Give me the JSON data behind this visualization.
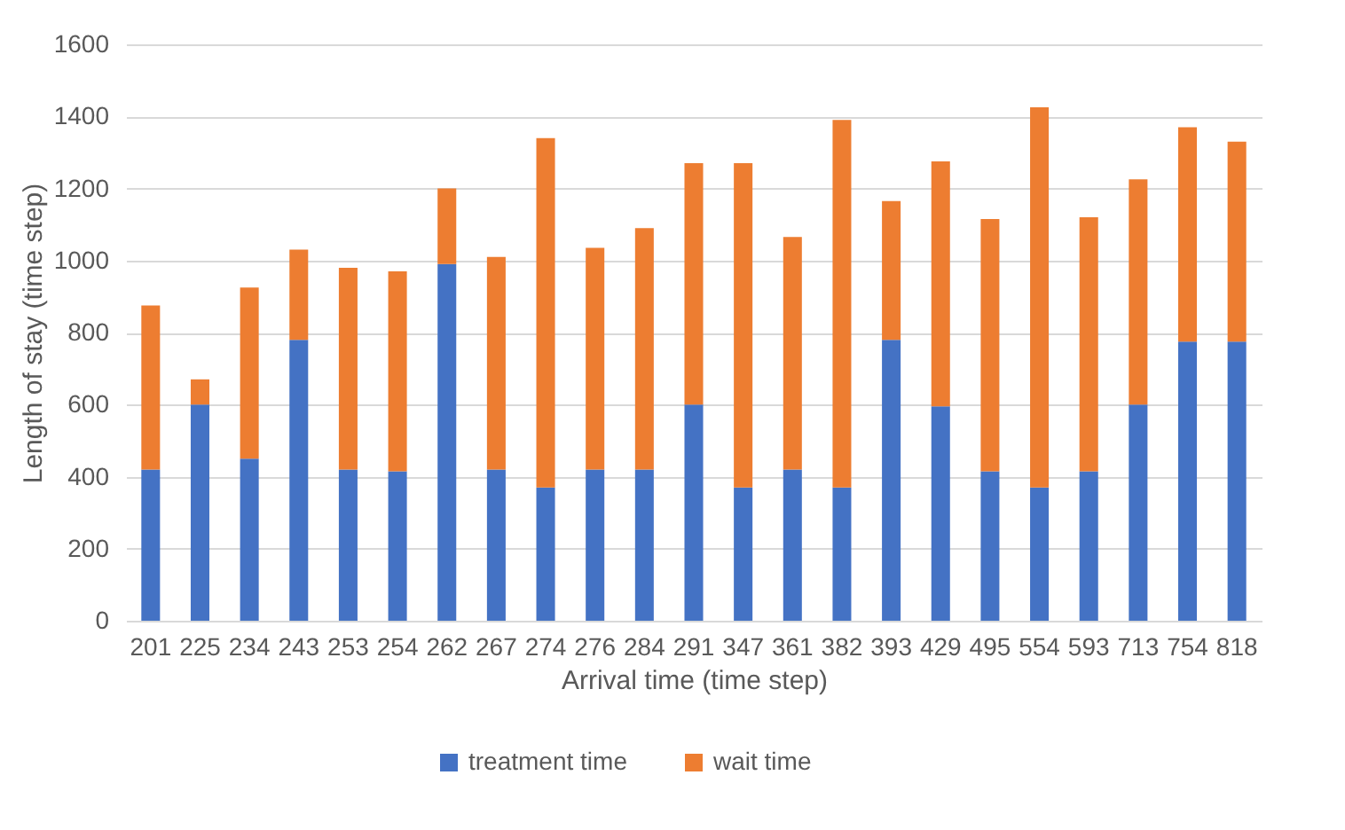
{
  "chart_data": {
    "type": "bar",
    "stacked": true,
    "xlabel": "Arrival time (time step)",
    "ylabel": "Length of stay (time step)",
    "categories": [
      "201",
      "225",
      "234",
      "243",
      "253",
      "254",
      "262",
      "267",
      "274",
      "276",
      "284",
      "291",
      "347",
      "361",
      "382",
      "393",
      "429",
      "495",
      "554",
      "593",
      "713",
      "754",
      "818"
    ],
    "series": [
      {
        "name": "treatment time",
        "color": "#4472c4",
        "values": [
          420,
          600,
          450,
          780,
          420,
          415,
          990,
          420,
          370,
          420,
          420,
          600,
          370,
          420,
          370,
          780,
          595,
          415,
          370,
          415,
          600,
          775,
          775
        ]
      },
      {
        "name": "wait time",
        "color": "#ed7d31",
        "values": [
          455,
          70,
          475,
          250,
          560,
          555,
          210,
          590,
          970,
          615,
          670,
          670,
          900,
          645,
          1020,
          385,
          680,
          700,
          1055,
          705,
          625,
          595,
          555
        ]
      }
    ],
    "ylim": [
      0,
      1600
    ],
    "yticks": [
      0,
      200,
      400,
      600,
      800,
      1000,
      1200,
      1400,
      1600
    ],
    "grid": "y",
    "legend": "bottom"
  }
}
